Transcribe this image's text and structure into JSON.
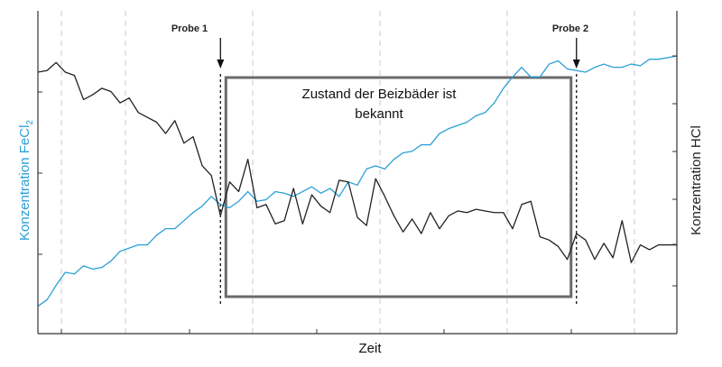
{
  "chart_data": {
    "type": "line",
    "xlabel": "Zeit",
    "ylabel_left": "Konzentration FeCl",
    "ylabel_left_subscript": "2",
    "ylabel_right": "Konzentration HCl",
    "grid": "vertical dashed",
    "x": [
      0,
      1,
      2,
      3,
      4,
      5,
      6,
      7,
      8,
      9,
      10,
      11,
      12,
      13,
      14,
      15,
      16,
      17,
      18,
      19,
      20,
      21,
      22,
      23,
      24,
      25,
      26,
      27,
      28,
      29,
      30,
      31,
      32,
      33,
      34,
      35,
      36,
      37,
      38,
      39,
      40,
      41,
      42,
      43,
      44,
      45,
      46,
      47,
      48,
      49,
      50,
      51,
      52,
      53,
      54,
      55,
      56,
      57,
      58,
      59,
      60,
      61,
      62,
      63,
      64,
      65,
      66,
      67,
      68,
      69,
      70
    ],
    "series": [
      {
        "color": "#2a9fd8",
        "axis": "left",
        "values": [
          17,
          21,
          30,
          38,
          37,
          42,
          40,
          41,
          45,
          51,
          53,
          55,
          55,
          61,
          65,
          65,
          70,
          75,
          79,
          85,
          80,
          78,
          82,
          88,
          82,
          83,
          88,
          87,
          85,
          88,
          91,
          87,
          90,
          85,
          94,
          92,
          102,
          104,
          102,
          108,
          112,
          113,
          117,
          117,
          124,
          127,
          129,
          131,
          135,
          137,
          143,
          152,
          159,
          165,
          159,
          159,
          167,
          169,
          164,
          163,
          162,
          165,
          167,
          165,
          165,
          167,
          166,
          170,
          170,
          171,
          172
        ]
      },
      {
        "color": "#222222",
        "axis": "right",
        "values": [
          162,
          163,
          168,
          162,
          160,
          145,
          148,
          152,
          150,
          143,
          146,
          137,
          134,
          131,
          124,
          132,
          118,
          122,
          104,
          98,
          73,
          94,
          88,
          108,
          78,
          80,
          68,
          70,
          90,
          68,
          86,
          79,
          75,
          95,
          94,
          72,
          67,
          96,
          85,
          73,
          63,
          71,
          62,
          75,
          65,
          73,
          76,
          75,
          77,
          76,
          75,
          75,
          65,
          80,
          82,
          60,
          58,
          54,
          46,
          62,
          58,
          46,
          56,
          47,
          70,
          44,
          55,
          52,
          55,
          55,
          55
        ]
      }
    ],
    "annotations": [
      {
        "label": "Probe 1",
        "x": 20
      },
      {
        "label": "Probe 2",
        "x": 59
      }
    ],
    "box_text": [
      "Zustand der Beizbäder ist",
      "bekannt"
    ]
  }
}
